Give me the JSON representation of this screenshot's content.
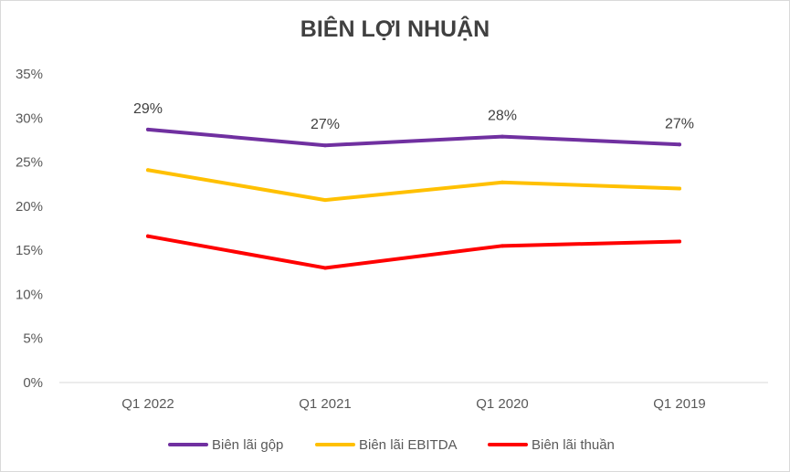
{
  "chart_data": {
    "type": "line",
    "title": "BIÊN LỢI NHUẬN",
    "xlabel": "",
    "ylabel": "",
    "categories": [
      "Q1 2022",
      "Q1 2021",
      "Q1 2020",
      "Q1 2019"
    ],
    "ylim": [
      0,
      35
    ],
    "yticks": [
      "0%",
      "5%",
      "10%",
      "15%",
      "20%",
      "25%",
      "30%",
      "35%"
    ],
    "ytick_values": [
      0,
      5,
      10,
      15,
      20,
      25,
      30,
      35
    ],
    "grid": false,
    "legend_position": "bottom",
    "series": [
      {
        "name": "Biên lãi gộp",
        "color": "#7030a0",
        "values": [
          28.7,
          26.9,
          27.9,
          27.0
        ],
        "data_labels": [
          "29%",
          "27%",
          "28%",
          "27%"
        ]
      },
      {
        "name": "Biên lãi EBITDA",
        "color": "#ffc000",
        "values": [
          24.1,
          20.7,
          22.7,
          22.0
        ],
        "data_labels": []
      },
      {
        "name": "Biên lãi thuần",
        "color": "#ff0000",
        "values": [
          16.6,
          13.0,
          15.5,
          16.0
        ],
        "data_labels": []
      }
    ]
  }
}
